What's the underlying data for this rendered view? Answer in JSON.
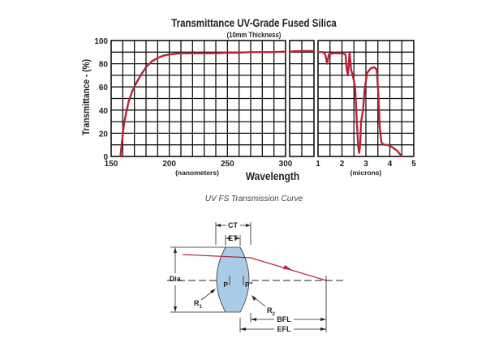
{
  "chart_data": {
    "type": "line",
    "title": "Transmittance UV-Grade Fused Silica",
    "subtitle": "(10mm Thickness)",
    "ylabel": "Transmittance - (%)",
    "xlabel": "Wavelength",
    "caption": "UV FS Transmission Curve",
    "y_ticks": [
      "0",
      "20",
      "40",
      "60",
      "80",
      "100"
    ],
    "ylim": [
      0,
      100
    ],
    "grid": true,
    "line_color": "#b5243a",
    "panels": [
      {
        "unit_label": "(nanometers)",
        "x_ticks": [
          "150",
          "200",
          "250",
          "300"
        ],
        "xlim": [
          150,
          300
        ],
        "x": [
          158,
          159,
          161,
          163,
          165,
          168,
          172,
          176,
          180,
          185,
          190,
          195,
          200,
          210,
          220,
          230,
          240,
          250,
          260,
          270,
          280,
          290,
          300
        ],
        "y": [
          0,
          10,
          28,
          38,
          47,
          56,
          64,
          71,
          77,
          82,
          85,
          87,
          88,
          89,
          89,
          89,
          89,
          89.5,
          89.5,
          90,
          90,
          90,
          90.5
        ]
      },
      {
        "unit_label": "",
        "x_ticks": [],
        "xlim": [
          300,
          700
        ],
        "x": [
          300,
          500,
          700
        ],
        "y": [
          90.5,
          91,
          91
        ]
      },
      {
        "unit_label": "(microns)",
        "x_ticks": [
          "1",
          "2",
          "3",
          "4",
          "5"
        ],
        "xlim": [
          1,
          5
        ],
        "x": [
          1.0,
          1.2,
          1.3,
          1.38,
          1.45,
          1.6,
          2.0,
          2.15,
          2.2,
          2.25,
          2.32,
          2.38,
          2.45,
          2.55,
          2.62,
          2.68,
          2.72,
          2.76,
          2.8,
          2.88,
          2.95,
          3.05,
          3.2,
          3.35,
          3.45,
          3.52,
          3.58,
          3.65,
          3.75,
          3.9,
          4.1,
          4.3,
          4.5
        ],
        "y": [
          90,
          90,
          88,
          80,
          88,
          89,
          89,
          88,
          75,
          70,
          90,
          75,
          70,
          60,
          30,
          8,
          3,
          10,
          30,
          40,
          58,
          72,
          76,
          77,
          75,
          55,
          25,
          12,
          10,
          10,
          8,
          5,
          0
        ]
      }
    ]
  },
  "diagram": {
    "labels": {
      "ct": "CT",
      "et": "ET",
      "dia": "Dia.",
      "p": "P",
      "p_prime": "P\"",
      "r1": "R",
      "r1_sub": "1",
      "r2": "R",
      "r2_sub": "2",
      "bfl": "BFL",
      "efl": "EFL"
    },
    "lens_fill": "#a9cde8",
    "ray_color": "#b5243a"
  }
}
